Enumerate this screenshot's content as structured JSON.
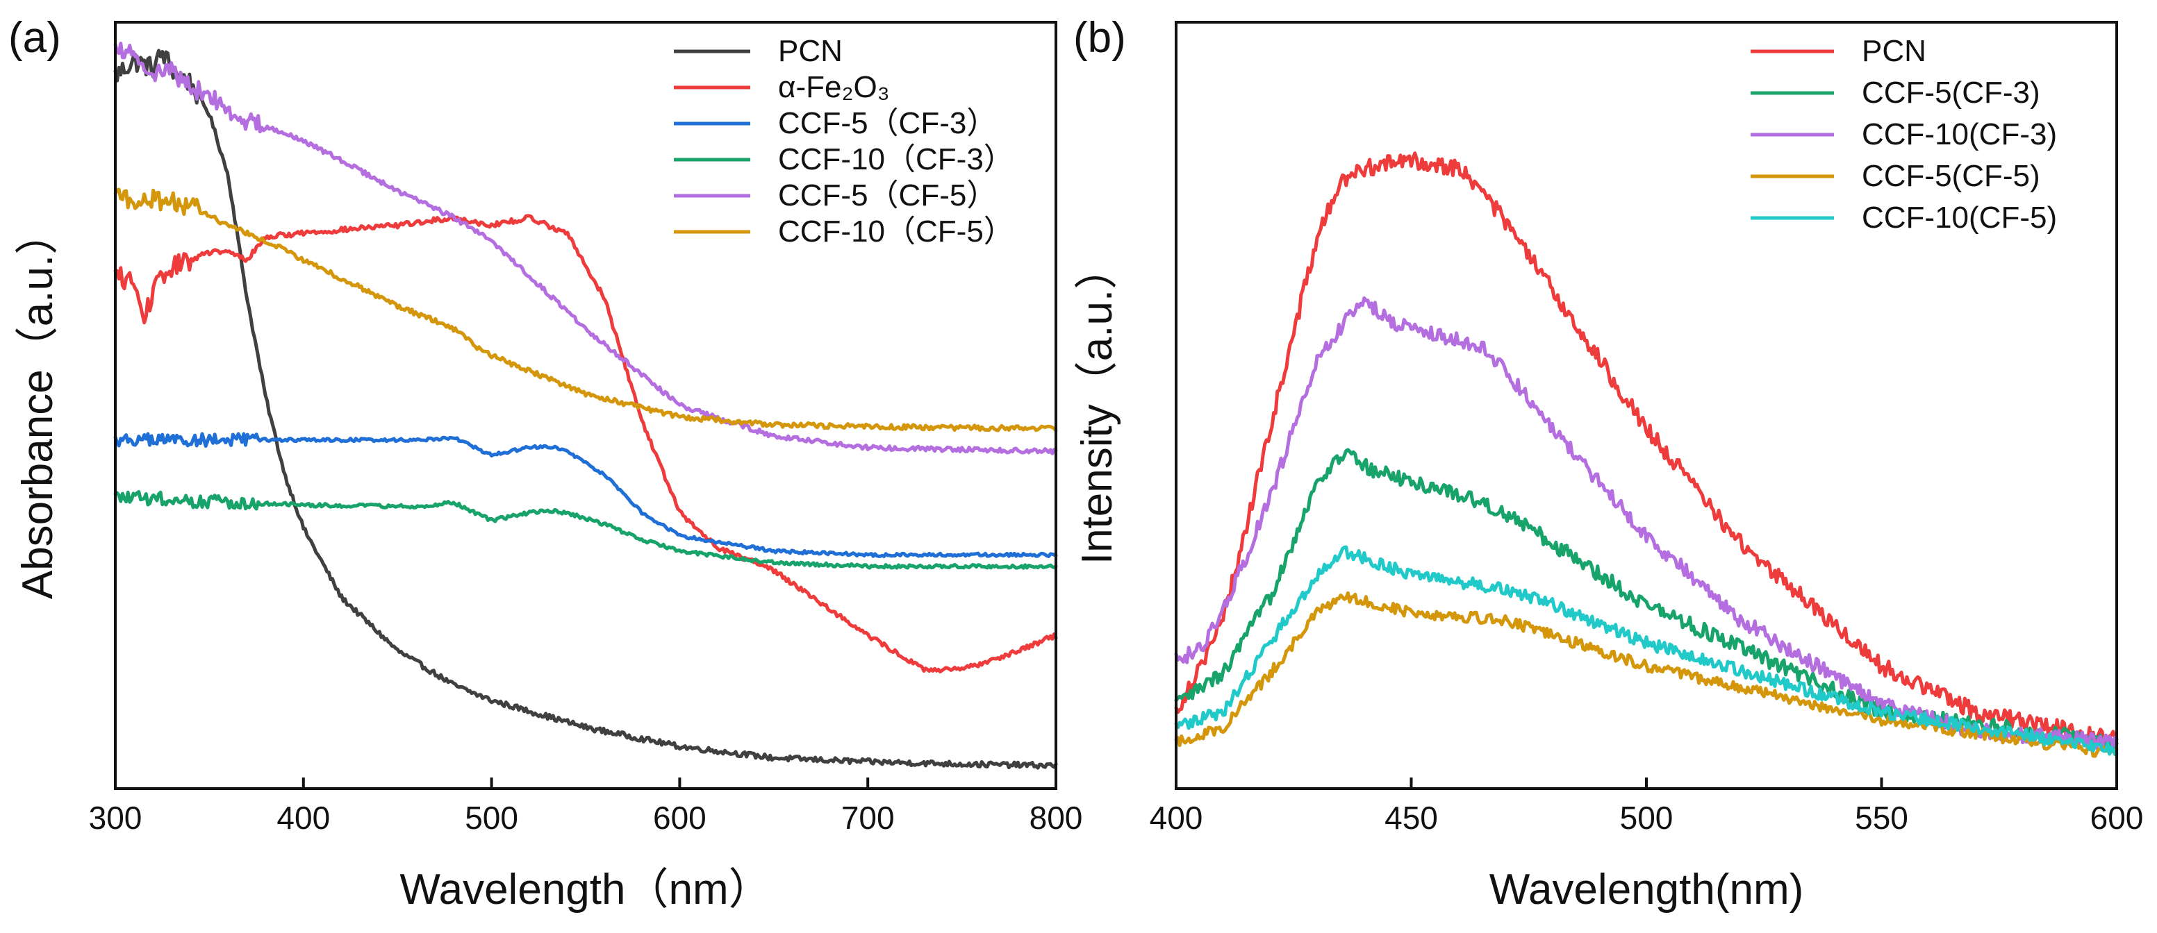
{
  "chart_data": [
    {
      "panel_label": "(a)",
      "type": "line",
      "xlabel": "Wavelength（nm）",
      "ylabel": "Absorbance（a.u.）",
      "xlim": [
        300,
        800
      ],
      "ylim": [
        0,
        1
      ],
      "xticks": [
        "300",
        "400",
        "500",
        "600",
        "700",
        "800"
      ],
      "legend_position": "top-right",
      "series": [
        {
          "name": "PCN",
          "color": "#404040",
          "noise": 0.014,
          "noise_until": 345,
          "x": [
            300,
            310,
            320,
            325,
            330,
            340,
            350,
            360,
            370,
            380,
            390,
            400,
            420,
            450,
            480,
            500,
            550,
            600,
            650,
            700,
            750,
            800
          ],
          "y": [
            0.93,
            0.95,
            0.94,
            0.96,
            0.94,
            0.92,
            0.88,
            0.8,
            0.64,
            0.51,
            0.41,
            0.34,
            0.25,
            0.18,
            0.135,
            0.115,
            0.08,
            0.055,
            0.04,
            0.035,
            0.032,
            0.03
          ]
        },
        {
          "name": "α-Fe₂O₃",
          "color": "#ee3b3b",
          "noise": 0.013,
          "noise_until": 340,
          "x": [
            300,
            310,
            315,
            320,
            330,
            340,
            350,
            360,
            370,
            380,
            400,
            450,
            480,
            500,
            520,
            540,
            560,
            580,
            600,
            620,
            650,
            700,
            730,
            750,
            780,
            800
          ],
          "y": [
            0.67,
            0.66,
            0.61,
            0.65,
            0.68,
            0.69,
            0.7,
            0.7,
            0.69,
            0.72,
            0.725,
            0.735,
            0.745,
            0.735,
            0.745,
            0.725,
            0.64,
            0.48,
            0.36,
            0.315,
            0.285,
            0.2,
            0.155,
            0.155,
            0.18,
            0.2
          ]
        },
        {
          "name": "CCF-5（CF-3）",
          "color": "#1f6fd6",
          "noise": 0.008,
          "noise_until": 375,
          "x": [
            300,
            350,
            400,
            460,
            480,
            500,
            520,
            530,
            540,
            560,
            580,
            600,
            650,
            700,
            800
          ],
          "y": [
            0.455,
            0.455,
            0.455,
            0.455,
            0.458,
            0.435,
            0.445,
            0.447,
            0.44,
            0.41,
            0.36,
            0.33,
            0.31,
            0.305,
            0.305
          ]
        },
        {
          "name": "CCF-10（CF-3）",
          "color": "#17a36a",
          "noise": 0.009,
          "noise_until": 375,
          "x": [
            300,
            350,
            400,
            460,
            480,
            500,
            520,
            530,
            540,
            560,
            580,
            600,
            650,
            700,
            800
          ],
          "y": [
            0.38,
            0.375,
            0.37,
            0.368,
            0.373,
            0.35,
            0.36,
            0.363,
            0.36,
            0.345,
            0.325,
            0.31,
            0.295,
            0.29,
            0.29
          ]
        },
        {
          "name": "CCF-5（CF-5）",
          "color": "#b46ee0",
          "noise": 0.012,
          "noise_until": 380,
          "x": [
            300,
            310,
            320,
            330,
            340,
            350,
            360,
            370,
            380,
            400,
            420,
            450,
            480,
            500,
            550,
            600,
            650,
            700,
            800
          ],
          "y": [
            0.965,
            0.96,
            0.935,
            0.935,
            0.915,
            0.905,
            0.885,
            0.87,
            0.865,
            0.845,
            0.82,
            0.78,
            0.745,
            0.715,
            0.6,
            0.5,
            0.46,
            0.445,
            0.44
          ]
        },
        {
          "name": "CCF-10（CF-5）",
          "color": "#d4960b",
          "noise": 0.013,
          "noise_until": 345,
          "x": [
            300,
            320,
            340,
            360,
            380,
            400,
            450,
            480,
            490,
            500,
            550,
            600,
            650,
            700,
            800
          ],
          "y": [
            0.77,
            0.77,
            0.76,
            0.735,
            0.715,
            0.69,
            0.63,
            0.6,
            0.58,
            0.565,
            0.515,
            0.485,
            0.475,
            0.472,
            0.47
          ]
        }
      ]
    },
    {
      "panel_label": "(b)",
      "type": "line",
      "xlabel": "Wavelength(nm)",
      "ylabel": "Intensity（a.u.）",
      "xlim": [
        400,
        600
      ],
      "ylim": [
        0,
        1
      ],
      "xticks": [
        "400",
        "450",
        "500",
        "550",
        "600"
      ],
      "legend_position": "top-right",
      "series": [
        {
          "name": "PCN",
          "color": "#ee3b3b",
          "noise": 0.011,
          "noise_until": 600,
          "x": [
            400,
            410,
            420,
            430,
            435,
            440,
            445,
            450,
            460,
            465,
            470,
            480,
            490,
            500,
            520,
            550,
            570,
            600
          ],
          "y": [
            0.1,
            0.22,
            0.47,
            0.72,
            0.79,
            0.81,
            0.815,
            0.82,
            0.81,
            0.78,
            0.74,
            0.65,
            0.56,
            0.47,
            0.32,
            0.16,
            0.1,
            0.065
          ]
        },
        {
          "name": "CCF-5(CF-3)",
          "color": "#17a36a",
          "noise": 0.01,
          "noise_until": 600,
          "x": [
            400,
            410,
            420,
            430,
            436,
            440,
            450,
            460,
            470,
            480,
            500,
            550,
            600
          ],
          "y": [
            0.11,
            0.15,
            0.25,
            0.4,
            0.44,
            0.42,
            0.4,
            0.385,
            0.36,
            0.32,
            0.24,
            0.1,
            0.06
          ]
        },
        {
          "name": "CCF-10(CF-3)",
          "color": "#b46ee0",
          "noise": 0.01,
          "noise_until": 600,
          "x": [
            400,
            405,
            410,
            420,
            430,
            440,
            445,
            450,
            460,
            465,
            470,
            480,
            500,
            520,
            550,
            570,
            600
          ],
          "y": [
            0.17,
            0.18,
            0.23,
            0.38,
            0.56,
            0.64,
            0.61,
            0.6,
            0.585,
            0.575,
            0.545,
            0.47,
            0.33,
            0.22,
            0.11,
            0.075,
            0.06
          ]
        },
        {
          "name": "CCF-5(CF-5)",
          "color": "#d4960b",
          "noise": 0.007,
          "noise_until": 600,
          "x": [
            400,
            410,
            420,
            430,
            436,
            440,
            450,
            460,
            470,
            480,
            500,
            550,
            600
          ],
          "y": [
            0.06,
            0.08,
            0.15,
            0.23,
            0.25,
            0.245,
            0.23,
            0.225,
            0.22,
            0.2,
            0.16,
            0.09,
            0.045
          ]
        },
        {
          "name": "CCF-10(CF-5)",
          "color": "#22c9c9",
          "noise": 0.008,
          "noise_until": 600,
          "x": [
            400,
            410,
            420,
            430,
            436,
            440,
            450,
            460,
            470,
            480,
            500,
            550,
            600
          ],
          "y": [
            0.08,
            0.1,
            0.19,
            0.28,
            0.31,
            0.3,
            0.28,
            0.27,
            0.26,
            0.24,
            0.19,
            0.1,
            0.05
          ]
        }
      ]
    }
  ]
}
